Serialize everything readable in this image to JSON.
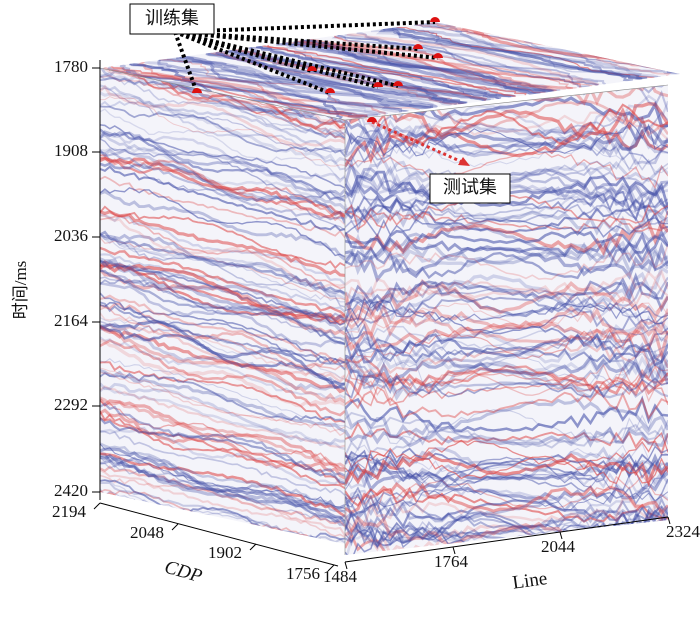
{
  "figure": {
    "time_axis": {
      "label": "时间/ms",
      "ticks": [
        1780,
        1908,
        2036,
        2164,
        2292,
        2420
      ]
    },
    "cdp_axis": {
      "label": "CDP",
      "ticks": [
        2194,
        2048,
        1902,
        1756
      ]
    },
    "line_axis": {
      "label": "Line",
      "ticks": [
        1484,
        1764,
        2044,
        2324
      ]
    },
    "annotations": {
      "train": "训练集",
      "test": "测试集"
    }
  }
}
